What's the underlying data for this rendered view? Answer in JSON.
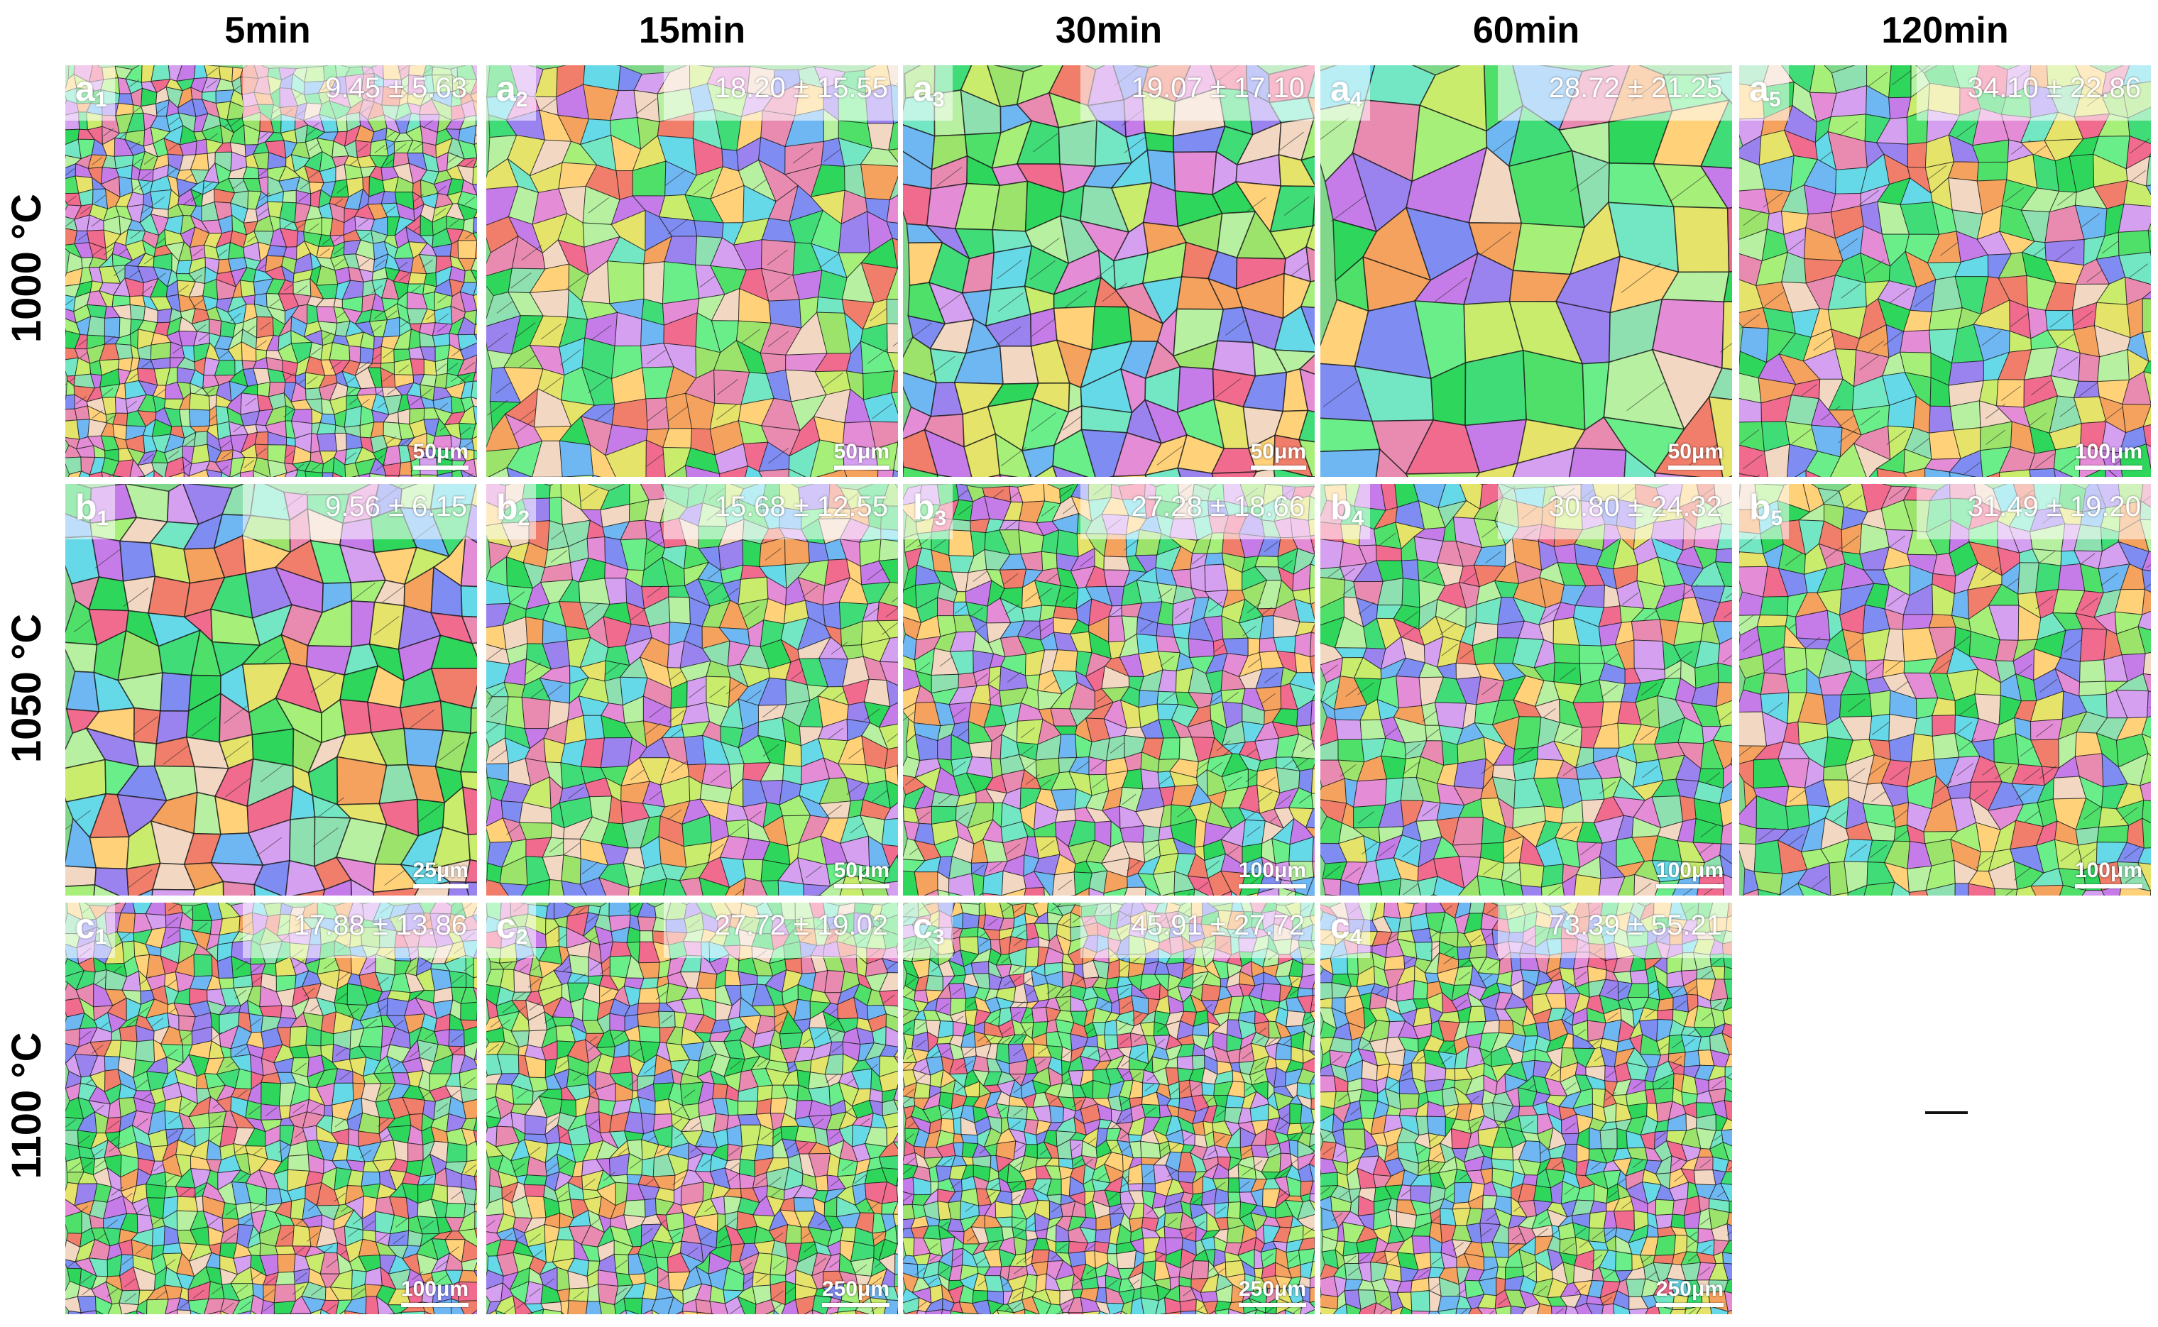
{
  "columns": [
    "5min",
    "15min",
    "30min",
    "60min",
    "120min"
  ],
  "rows": [
    "1000 °C",
    "1050 °C",
    "1100 °C"
  ],
  "panels": [
    {
      "row": 0,
      "col": 0,
      "letter": "a",
      "sub": "1",
      "stat": "9.45 ± 5.63",
      "scale": "50μm",
      "grain": 18,
      "seed": 11
    },
    {
      "row": 0,
      "col": 1,
      "letter": "a",
      "sub": "2",
      "stat": "18.20 ± 15.55",
      "scale": "50μm",
      "grain": 36,
      "seed": 12
    },
    {
      "row": 0,
      "col": 2,
      "letter": "a",
      "sub": "3",
      "stat": "19.07 ± 17.10",
      "scale": "50μm",
      "grain": 44,
      "seed": 13
    },
    {
      "row": 0,
      "col": 3,
      "letter": "a",
      "sub": "4",
      "stat": "28.72 ± 21.25",
      "scale": "50μm",
      "grain": 70,
      "seed": 14
    },
    {
      "row": 0,
      "col": 4,
      "letter": "a",
      "sub": "5",
      "stat": "34.10 ± 22.86",
      "scale": "100μm",
      "grain": 34,
      "seed": 15
    },
    {
      "row": 1,
      "col": 0,
      "letter": "b",
      "sub": "1",
      "stat": "9.56 ± 6.15",
      "scale": "25μm",
      "grain": 44,
      "seed": 21
    },
    {
      "row": 1,
      "col": 1,
      "letter": "b",
      "sub": "2",
      "stat": "15.68 ± 12.55",
      "scale": "50μm",
      "grain": 28,
      "seed": 22
    },
    {
      "row": 1,
      "col": 2,
      "letter": "b",
      "sub": "3",
      "stat": "27.28 ± 18.66",
      "scale": "100μm",
      "grain": 24,
      "seed": 23
    },
    {
      "row": 1,
      "col": 3,
      "letter": "b",
      "sub": "4",
      "stat": "30.80 ± 24.32",
      "scale": "100μm",
      "grain": 28,
      "seed": 24
    },
    {
      "row": 1,
      "col": 4,
      "letter": "b",
      "sub": "5",
      "stat": "31.49 ± 19.20",
      "scale": "100μm",
      "grain": 30,
      "seed": 25
    },
    {
      "row": 2,
      "col": 0,
      "letter": "c",
      "sub": "1",
      "stat": "17.88 ± 13.86",
      "scale": "100μm",
      "grain": 20,
      "seed": 31
    },
    {
      "row": 2,
      "col": 1,
      "letter": "c",
      "sub": "2",
      "stat": "27.72 ± 19.02",
      "scale": "250μm",
      "grain": 20,
      "seed": 32
    },
    {
      "row": 2,
      "col": 2,
      "letter": "c",
      "sub": "3",
      "stat": "45.91 ± 27.72",
      "scale": "250μm",
      "grain": 17,
      "seed": 33
    },
    {
      "row": 2,
      "col": 3,
      "letter": "c",
      "sub": "4",
      "stat": "73.39 ± 55.21",
      "scale": "250μm",
      "grain": 19,
      "seed": 34
    }
  ],
  "empty_cell_mark": "—",
  "palette": [
    "#4fe06a",
    "#2ed65b",
    "#6aee8a",
    "#9be36b",
    "#c9ec6d",
    "#e6e36a",
    "#f4a25e",
    "#f07e6a",
    "#f06b8e",
    "#e58cd6",
    "#c67ce8",
    "#9b83ef",
    "#7f8cf2",
    "#6fb7f2",
    "#66d9e8",
    "#73e7c3",
    "#b6f0a0",
    "#f2d8c2",
    "#a6f07a",
    "#3fdc78",
    "#e98bb0",
    "#ffd27a",
    "#8fe0b0",
    "#d6a0f0"
  ]
}
